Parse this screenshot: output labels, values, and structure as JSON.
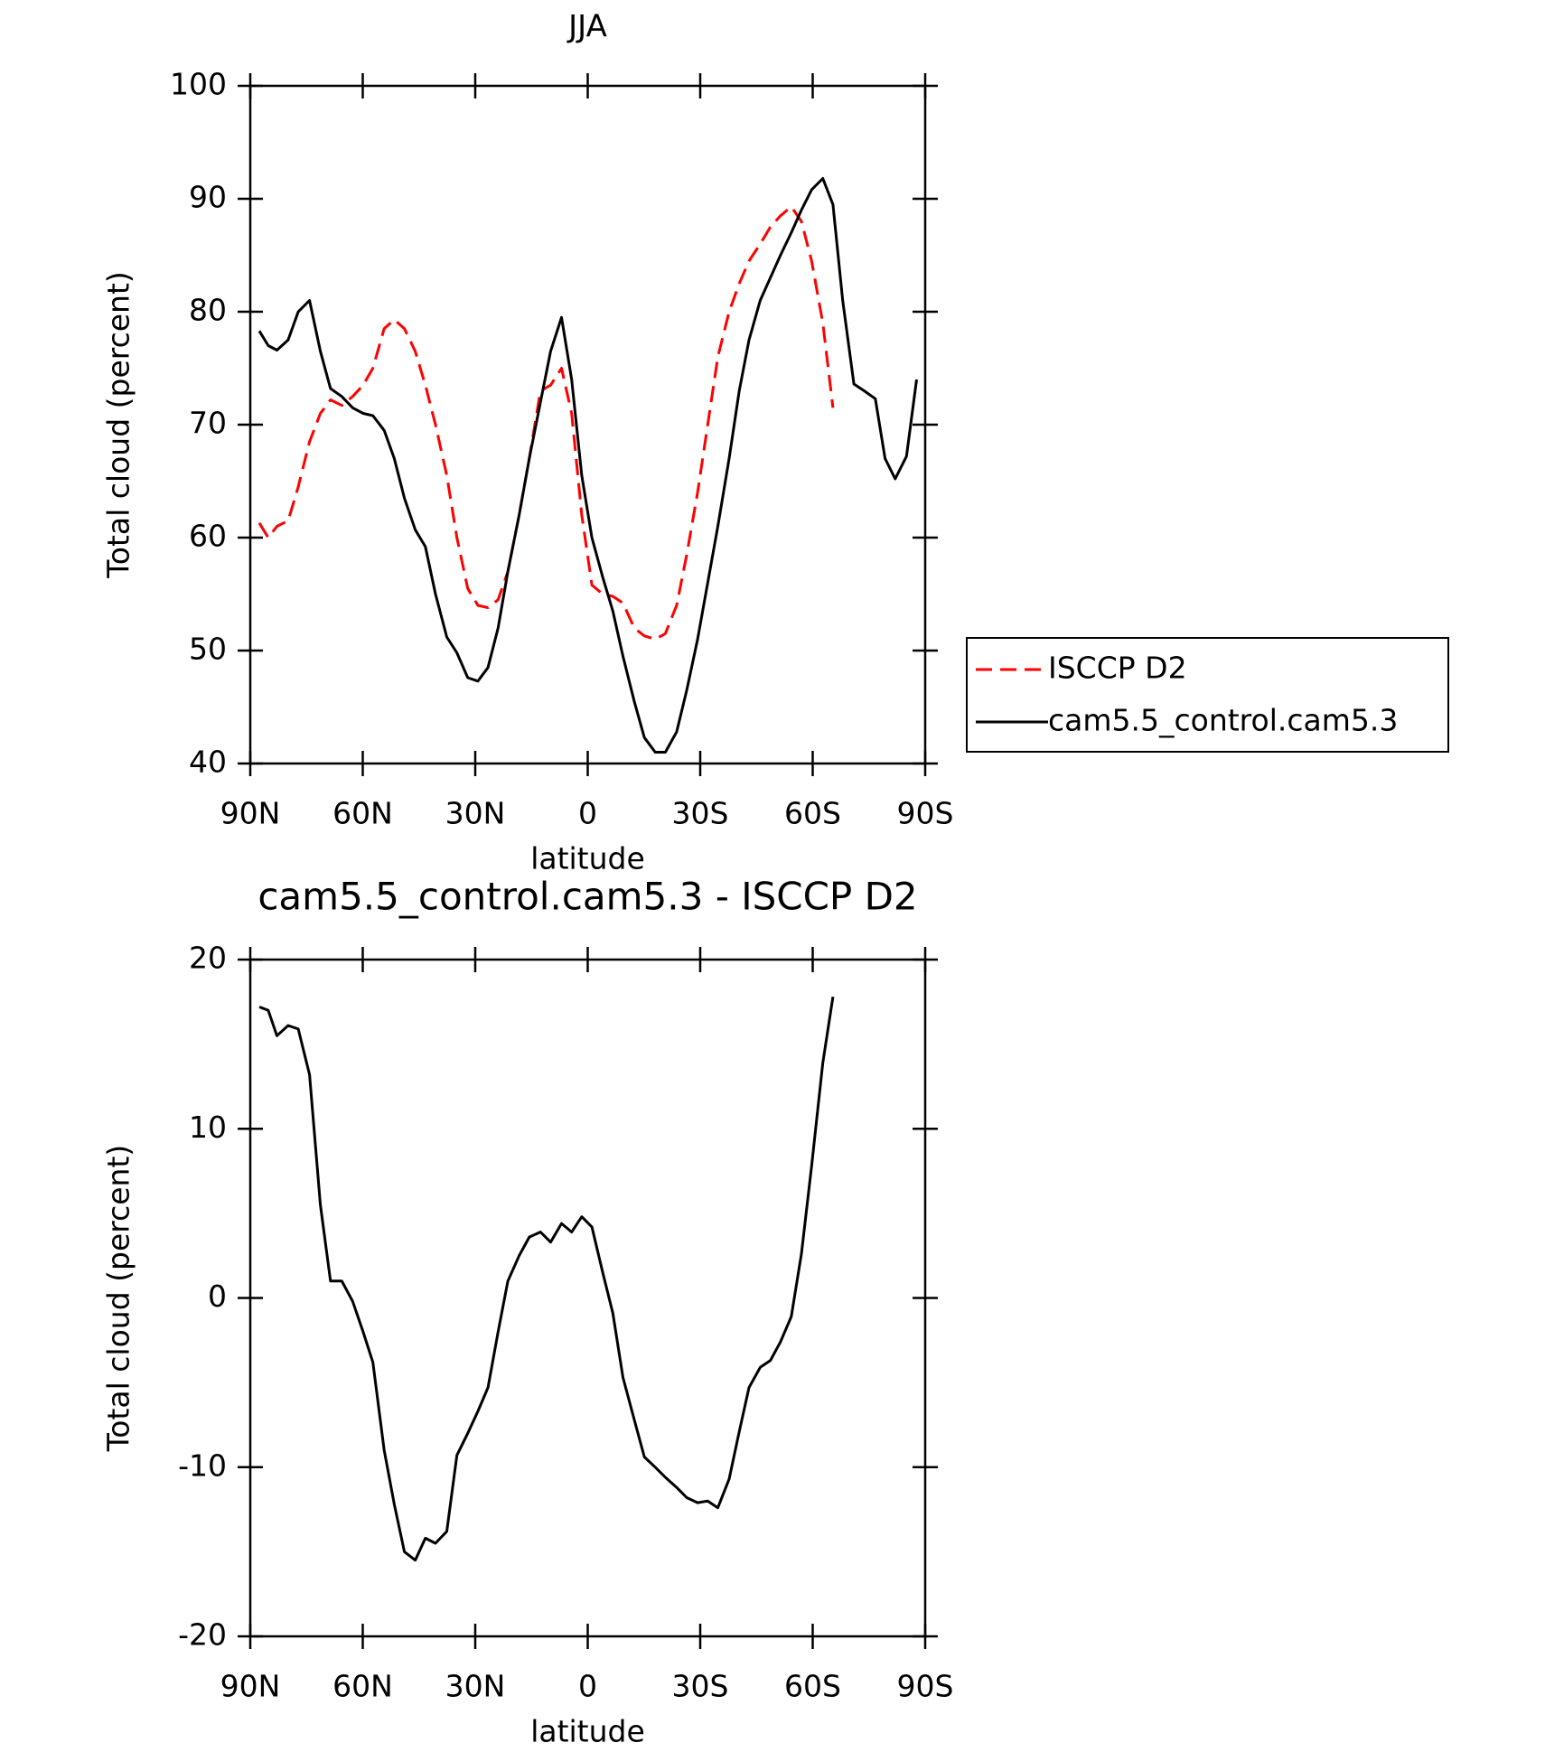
{
  "chart_data": [
    {
      "type": "line",
      "title": "JJA",
      "xlabel": "latitude",
      "ylabel": "Total cloud (percent)",
      "xlim": [
        90,
        -90
      ],
      "xticks": [
        {
          "value": 90,
          "label": "90N"
        },
        {
          "value": 60,
          "label": "60N"
        },
        {
          "value": 30,
          "label": "30N"
        },
        0,
        {
          "value": -30,
          "label": "30S"
        },
        {
          "value": -60,
          "label": "60S"
        },
        {
          "value": -90,
          "label": "90S"
        }
      ],
      "ylim": [
        40,
        100
      ],
      "yticks": [
        40,
        50,
        60,
        70,
        80,
        90,
        100
      ],
      "legend": "right",
      "x": [
        87.6,
        85.2,
        82.9,
        79.9,
        77.2,
        74.2,
        71.3,
        68.6,
        65.6,
        62.7,
        59.9,
        57.3,
        54.3,
        51.6,
        48.9,
        46.0,
        43.3,
        40.6,
        37.6,
        34.9,
        32.0,
        29.3,
        26.6,
        23.9,
        21.3,
        18.3,
        15.6,
        12.6,
        9.9,
        7.0,
        4.3,
        1.6,
        -1.1,
        -4.0,
        -6.7,
        -9.4,
        -12.4,
        -15.1,
        -18.0,
        -20.7,
        -23.7,
        -26.4,
        -29.3,
        -32.0,
        -34.7,
        -37.7,
        -40.4,
        -43.0,
        -46.0,
        -48.7,
        -51.4,
        -54.3,
        -57.0,
        -59.7,
        -62.7,
        -65.4,
        -68.0,
        -71.0,
        -73.7,
        -76.7,
        -79.3,
        -82.0,
        -85.0,
        -87.7
      ],
      "series": [
        {
          "name": "ISCCP D2",
          "color": "#ff0000",
          "dashed": true,
          "values": [
            61.3,
            60,
            61,
            61.5,
            64.5,
            68.5,
            71,
            72.2,
            71.7,
            72.5,
            73.5,
            75,
            78.5,
            79.3,
            78.5,
            76.5,
            73.5,
            70,
            65.5,
            60,
            55.5,
            54,
            53.8,
            54.5,
            57,
            62,
            67,
            73,
            73.5,
            75,
            71,
            62,
            55.8,
            55,
            54.8,
            54.2,
            52,
            51.3,
            51,
            51.5,
            54,
            58.5,
            64,
            70,
            76,
            80,
            82.5,
            84.5,
            86,
            87.5,
            88.5,
            89.3,
            88,
            84.5,
            79,
            71.5,
            null,
            null,
            null,
            null,
            null,
            null,
            null,
            null
          ]
        },
        {
          "name": "cam5.5_control.cam5.3",
          "color": "#000000",
          "dashed": false,
          "values": [
            78.3,
            77,
            76.6,
            77.5,
            80,
            81,
            76.5,
            73.2,
            72.5,
            71.5,
            71,
            70.8,
            69.5,
            67,
            63.5,
            60.7,
            59.2,
            55,
            51.2,
            49.8,
            47.6,
            47.3,
            48.5,
            52,
            57,
            62,
            67,
            72,
            76.5,
            79.5,
            74,
            65.5,
            60,
            56.5,
            53.5,
            49.5,
            45.5,
            42.3,
            41,
            41,
            42.8,
            46.5,
            51,
            56,
            61,
            67,
            73,
            77.5,
            81,
            83,
            85,
            87,
            89,
            90.8,
            91.8,
            89.5,
            81,
            73.6,
            73,
            72.3,
            67,
            65.2,
            67.2,
            74
          ]
        }
      ]
    },
    {
      "type": "line",
      "title": "cam5.5_control.cam5.3 - ISCCP D2",
      "xlabel": "latitude",
      "ylabel": "Total cloud (percent)",
      "xlim": [
        90,
        -90
      ],
      "xticks": [
        {
          "value": 90,
          "label": "90N"
        },
        {
          "value": 60,
          "label": "60N"
        },
        {
          "value": 30,
          "label": "30N"
        },
        0,
        {
          "value": -30,
          "label": "30S"
        },
        {
          "value": -60,
          "label": "60S"
        },
        {
          "value": -90,
          "label": "90S"
        }
      ],
      "ylim": [
        -20,
        20
      ],
      "yticks": [
        -20,
        -10,
        0,
        10,
        20
      ],
      "x": [
        87.6,
        85.2,
        82.9,
        79.9,
        77.2,
        74.2,
        71.3,
        68.6,
        65.6,
        62.7,
        59.9,
        57.3,
        54.3,
        51.6,
        48.9,
        46.0,
        43.3,
        40.6,
        37.6,
        34.9,
        32.0,
        29.3,
        26.6,
        23.9,
        21.3,
        18.3,
        15.6,
        12.6,
        9.9,
        7.0,
        4.3,
        1.6,
        -1.1,
        -4.0,
        -6.7,
        -9.4,
        -12.4,
        -15.1,
        -18.0,
        -20.7,
        -23.7,
        -26.4,
        -29.3,
        -32.0,
        -34.7,
        -37.7,
        -40.4,
        -43.0,
        -46.0,
        -48.7,
        -51.4,
        -54.3,
        -57.0,
        -59.7,
        -62.7,
        -65.4,
        -68.0,
        -71.0,
        -73.7,
        -76.7,
        -79.3,
        -82.0,
        -85.0,
        -87.7
      ],
      "series": [
        {
          "color": "#000000",
          "dashed": false,
          "values": [
            17.2,
            17,
            15.5,
            16.1,
            15.9,
            13.2,
            5.5,
            1,
            1,
            -0.2,
            -2,
            -3.8,
            -9,
            -12.2,
            -15,
            -15.5,
            -14.2,
            -14.5,
            -13.8,
            -9.3,
            -8,
            -6.7,
            -5.3,
            -2,
            1,
            2.5,
            3.6,
            3.9,
            3.3,
            4.4,
            3.9,
            4.8,
            4.2,
            1.5,
            -0.9,
            -4.7,
            -7.2,
            -9.4,
            -10,
            -10.6,
            -11.2,
            -11.8,
            -12.1,
            -12,
            -12.4,
            -10.7,
            -7.9,
            -5.3,
            -4.1,
            -3.7,
            -2.6,
            -1.1,
            2.6,
            7.8,
            13.9,
            17.8,
            null,
            null,
            null,
            null,
            null,
            null,
            null,
            null
          ]
        }
      ]
    }
  ]
}
